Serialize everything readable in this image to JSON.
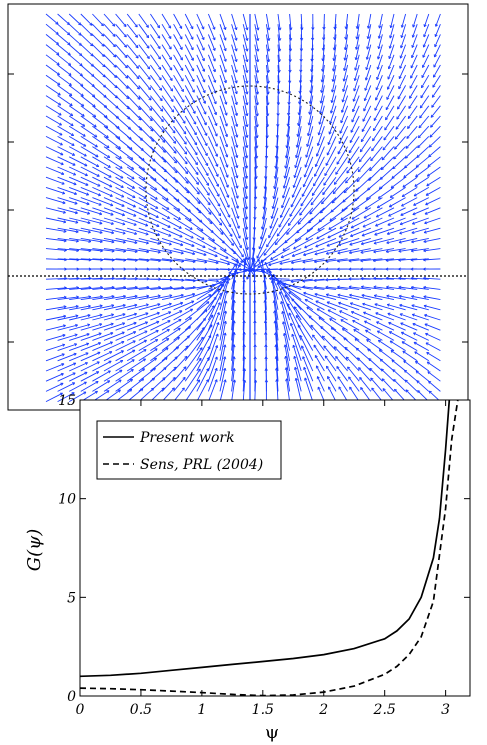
{
  "figure": {
    "vector_field_panel": {
      "type": "quiver",
      "arrow_color": "#1a3cff",
      "dotted_circle": true,
      "dotted_horizontal_line": true
    },
    "chart_data": {
      "type": "line",
      "title": "",
      "xlabel": "ψ",
      "ylabel": "G(ψ)",
      "xlim": [
        0,
        3.2
      ],
      "ylim": [
        0,
        15
      ],
      "xticks": [
        "0",
        "0.5",
        "1",
        "1.5",
        "2",
        "2.5",
        "3"
      ],
      "yticks": [
        "0",
        "5",
        "10",
        "15"
      ],
      "legend_placement": "top-left",
      "series": [
        {
          "name": "Present work",
          "style": "solid",
          "x": [
            0,
            0.25,
            0.5,
            0.75,
            1.0,
            1.25,
            1.5,
            1.75,
            2.0,
            2.25,
            2.5,
            2.6,
            2.7,
            2.8,
            2.9,
            2.95,
            3.0,
            3.03
          ],
          "y": [
            1.0,
            1.05,
            1.15,
            1.3,
            1.45,
            1.6,
            1.75,
            1.9,
            2.1,
            2.4,
            2.9,
            3.3,
            3.9,
            5.0,
            7.0,
            9.0,
            12.5,
            15
          ]
        },
        {
          "name": "Sens, PRL (2004)",
          "style": "dashed",
          "x": [
            0,
            0.25,
            0.5,
            0.75,
            1.0,
            1.25,
            1.5,
            1.75,
            2.0,
            2.25,
            2.5,
            2.6,
            2.7,
            2.8,
            2.9,
            3.0,
            3.05,
            3.1
          ],
          "y": [
            0.4,
            0.37,
            0.32,
            0.25,
            0.17,
            0.08,
            0.02,
            0.05,
            0.2,
            0.5,
            1.1,
            1.5,
            2.1,
            3.0,
            4.8,
            9.5,
            13,
            15
          ]
        }
      ]
    }
  }
}
